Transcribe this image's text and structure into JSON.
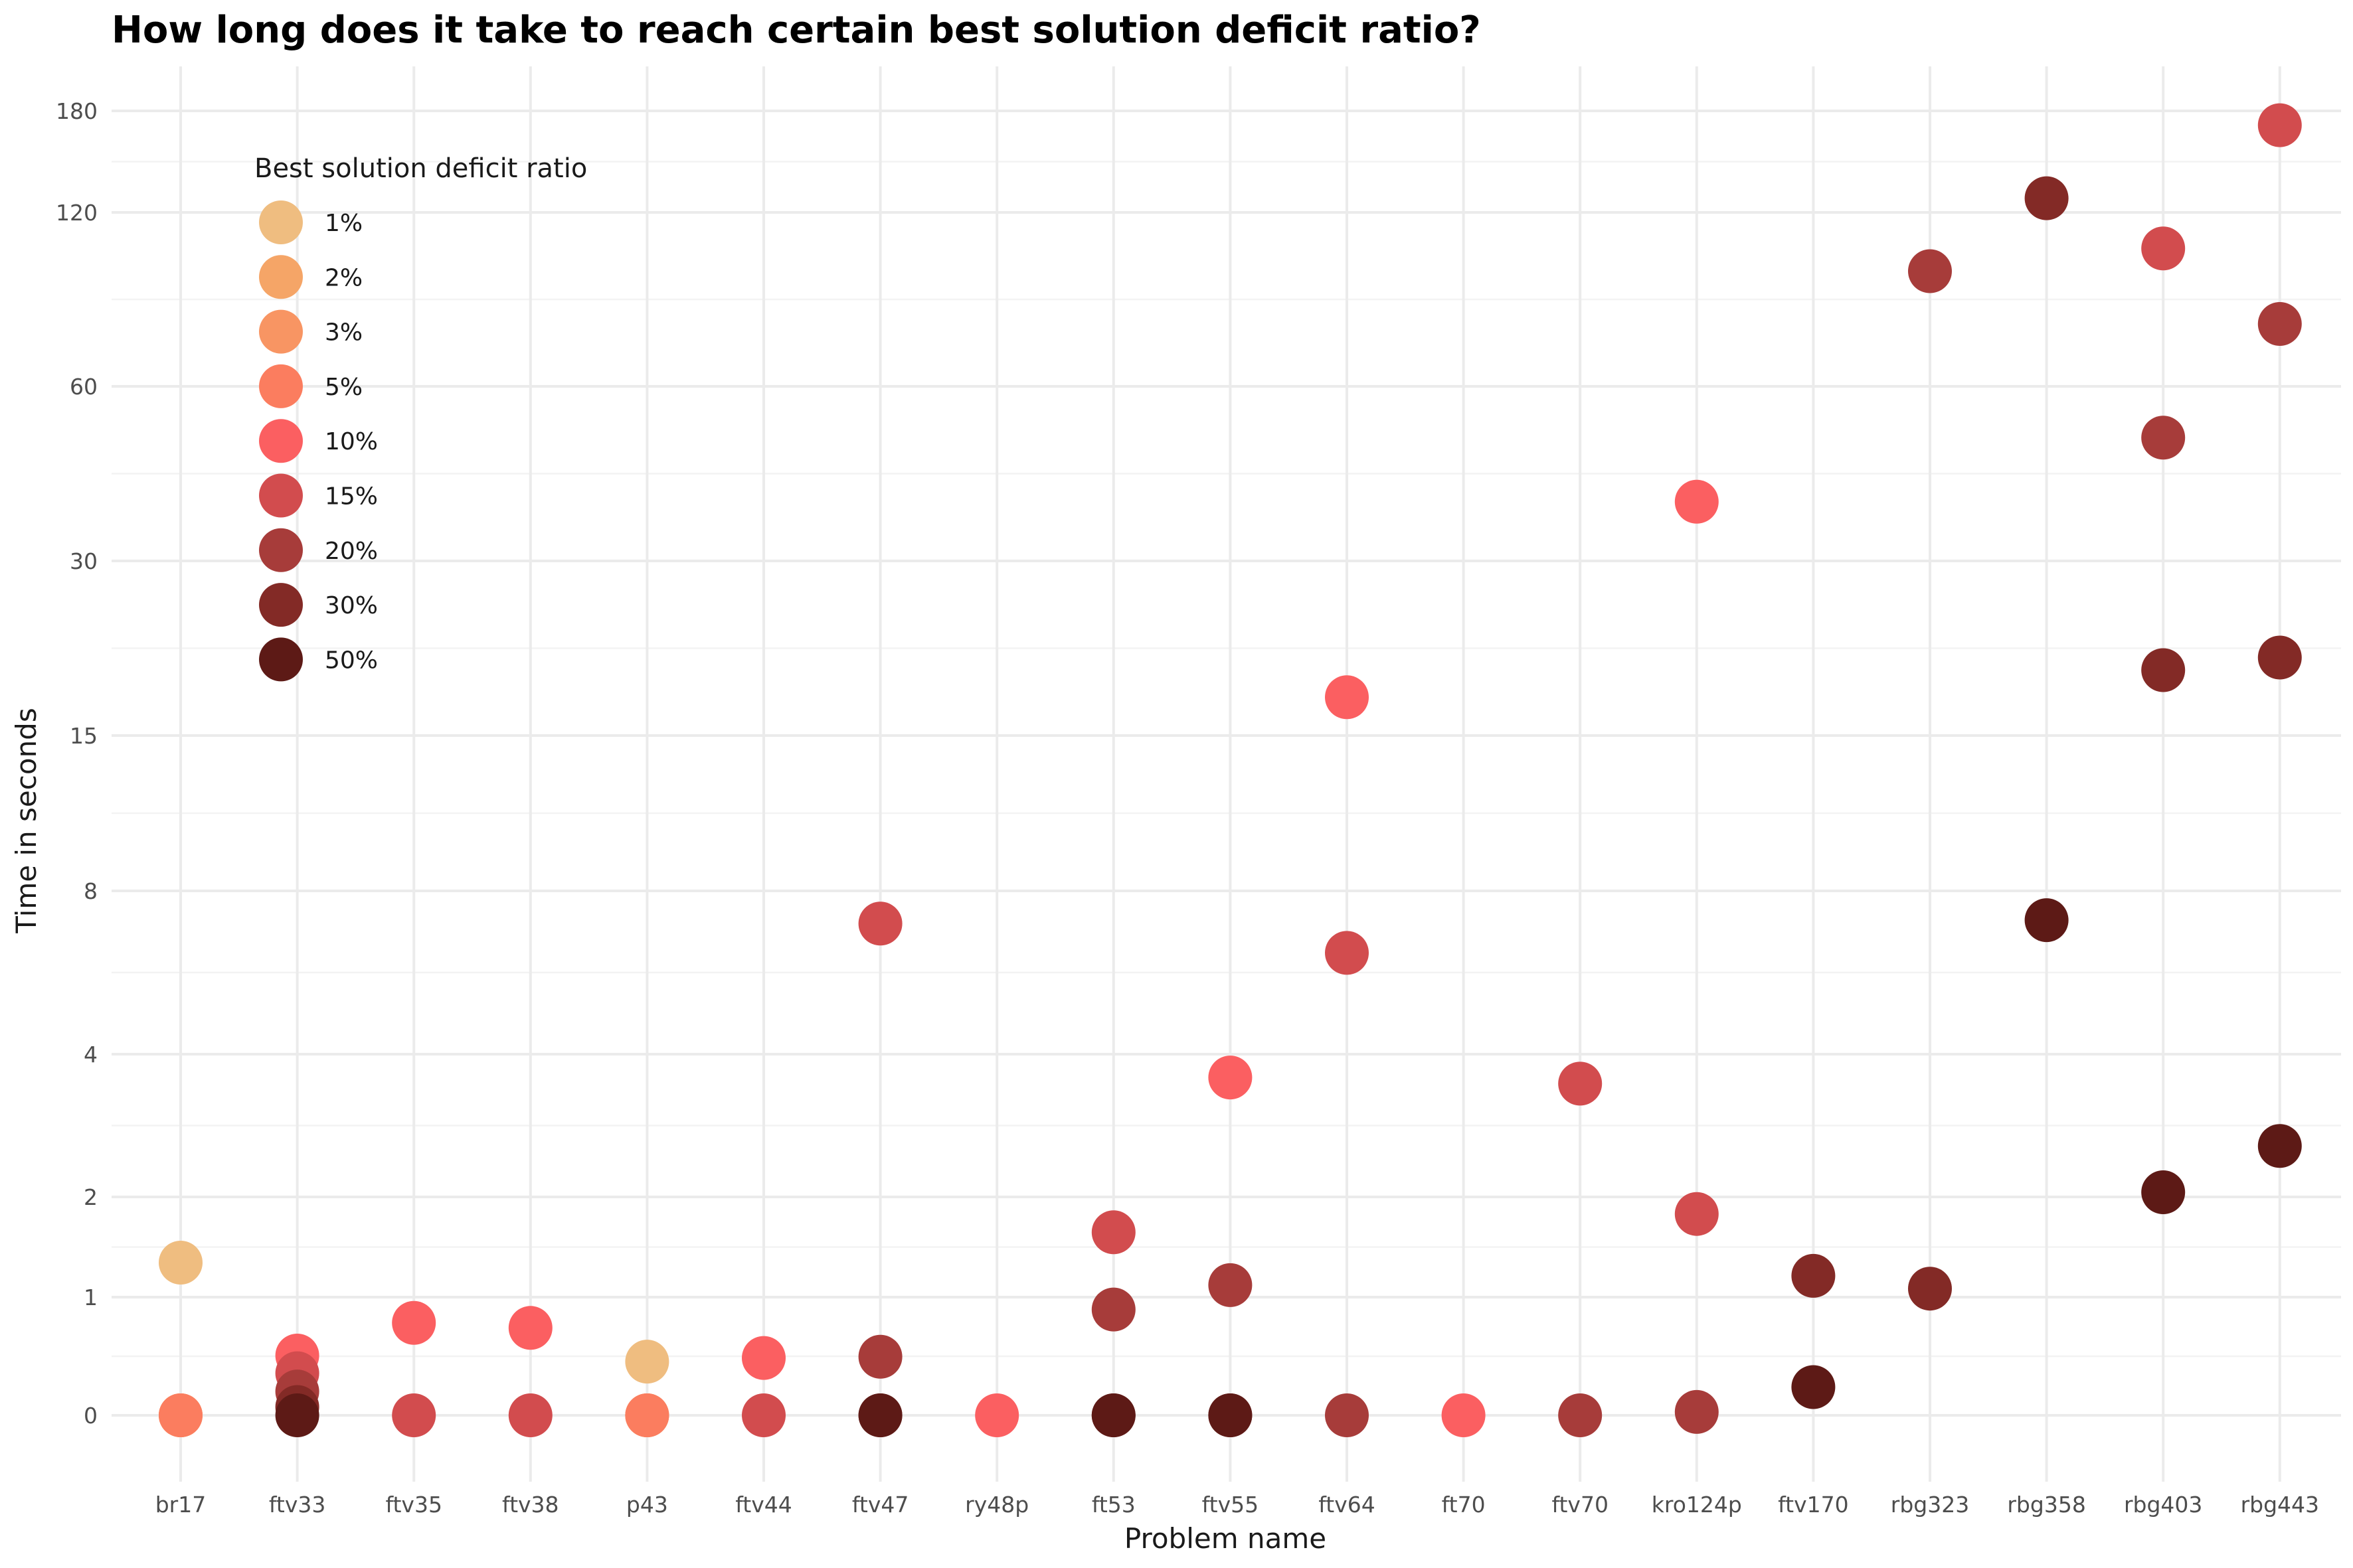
{
  "chart_data": {
    "type": "scatter",
    "title": "How long does it take to reach certain best solution deficit ratio?",
    "xlabel": "Problem name",
    "ylabel": "Time in seconds",
    "y_scale": "pseudo-log",
    "y_ticks": [
      0,
      1,
      2,
      4,
      8,
      15,
      30,
      60,
      120,
      180
    ],
    "categories": [
      "br17",
      "ftv33",
      "ftv35",
      "ftv38",
      "p43",
      "ftv44",
      "ftv47",
      "ry48p",
      "ft53",
      "ftv55",
      "ftv64",
      "ft70",
      "ftv70",
      "kro124p",
      "ftv170",
      "rbg323",
      "rbg358",
      "rbg403",
      "rbg443"
    ],
    "grid": true,
    "legend": {
      "title": "Best solution deficit ratio",
      "placement": "top-left",
      "entries": [
        {
          "label": "1%",
          "color": "#efbd80"
        },
        {
          "label": "2%",
          "color": "#f5a567"
        },
        {
          "label": "3%",
          "color": "#f89563"
        },
        {
          "label": "5%",
          "color": "#fb7d5f"
        },
        {
          "label": "10%",
          "color": "#fb5f61"
        },
        {
          "label": "15%",
          "color": "#d24c4e"
        },
        {
          "label": "20%",
          "color": "#a73c3a"
        },
        {
          "label": "30%",
          "color": "#832a26"
        },
        {
          "label": "50%",
          "color": "#5d1a16"
        }
      ]
    },
    "series": [
      {
        "name": "1%",
        "color": "#efbd80",
        "points": [
          [
            "br17",
            1.3
          ],
          [
            "br17",
            0
          ],
          [
            "p43",
            0.37
          ],
          [
            "p43",
            0
          ]
        ]
      },
      {
        "name": "2%",
        "color": "#f5a567",
        "points": [
          [
            "br17",
            0
          ],
          [
            "p43",
            0
          ]
        ]
      },
      {
        "name": "3%",
        "color": "#f89563",
        "points": [
          [
            "br17",
            0
          ],
          [
            "p43",
            0
          ]
        ]
      },
      {
        "name": "5%",
        "color": "#fb7d5f",
        "points": [
          [
            "br17",
            0
          ],
          [
            "p43",
            0
          ]
        ]
      },
      {
        "name": "10%",
        "color": "#fb5f61",
        "points": [
          [
            "ftv33",
            0.42
          ],
          [
            "ftv35",
            0.72
          ],
          [
            "ftv38",
            0.67
          ],
          [
            "ftv44",
            0.4
          ],
          [
            "ry48p",
            0
          ],
          [
            "ftv55",
            3.6
          ],
          [
            "ftv64",
            17.5
          ],
          [
            "ft70",
            0
          ],
          [
            "kro124p",
            38
          ]
        ]
      },
      {
        "name": "15%",
        "color": "#d24c4e",
        "points": [
          [
            "ftv33",
            0.28
          ],
          [
            "ftv35",
            0
          ],
          [
            "ftv38",
            0
          ],
          [
            "ftv44",
            0
          ],
          [
            "ftv47",
            7
          ],
          [
            "ft53",
            1.6
          ],
          [
            "ftv64",
            6.2
          ],
          [
            "ftv70",
            3.5
          ],
          [
            "kro124p",
            1.8
          ],
          [
            "rbg403",
            104
          ],
          [
            "rbg443",
            170
          ]
        ]
      },
      {
        "name": "20%",
        "color": "#a73c3a",
        "points": [
          [
            "ftv33",
            0.15
          ],
          [
            "ftv47",
            0.41
          ],
          [
            "ft53",
            0.86
          ],
          [
            "ftv55",
            1.1
          ],
          [
            "ftv64",
            0
          ],
          [
            "ftv70",
            0
          ],
          [
            "kro124p",
            0.02
          ],
          [
            "rbg323",
            95
          ],
          [
            "rbg403",
            49
          ],
          [
            "rbg443",
            77
          ]
        ]
      },
      {
        "name": "30%",
        "color": "#832a26",
        "points": [
          [
            "ftv33",
            0.05
          ],
          [
            "ftv47",
            0
          ],
          [
            "ft53",
            0
          ],
          [
            "ftv55",
            0
          ],
          [
            "ftv170",
            1.18
          ],
          [
            "rbg323",
            1.07
          ],
          [
            "rbg358",
            127
          ],
          [
            "rbg403",
            19.5
          ],
          [
            "rbg443",
            20.5
          ]
        ]
      },
      {
        "name": "50%",
        "color": "#5d1a16",
        "points": [
          [
            "ftv33",
            0
          ],
          [
            "ftv47",
            0
          ],
          [
            "ft53",
            0
          ],
          [
            "ftv55",
            0
          ],
          [
            "ftv170",
            0.18
          ],
          [
            "rbg358",
            7.1
          ],
          [
            "rbg403",
            2.05
          ],
          [
            "rbg443",
            2.6
          ]
        ]
      }
    ]
  }
}
